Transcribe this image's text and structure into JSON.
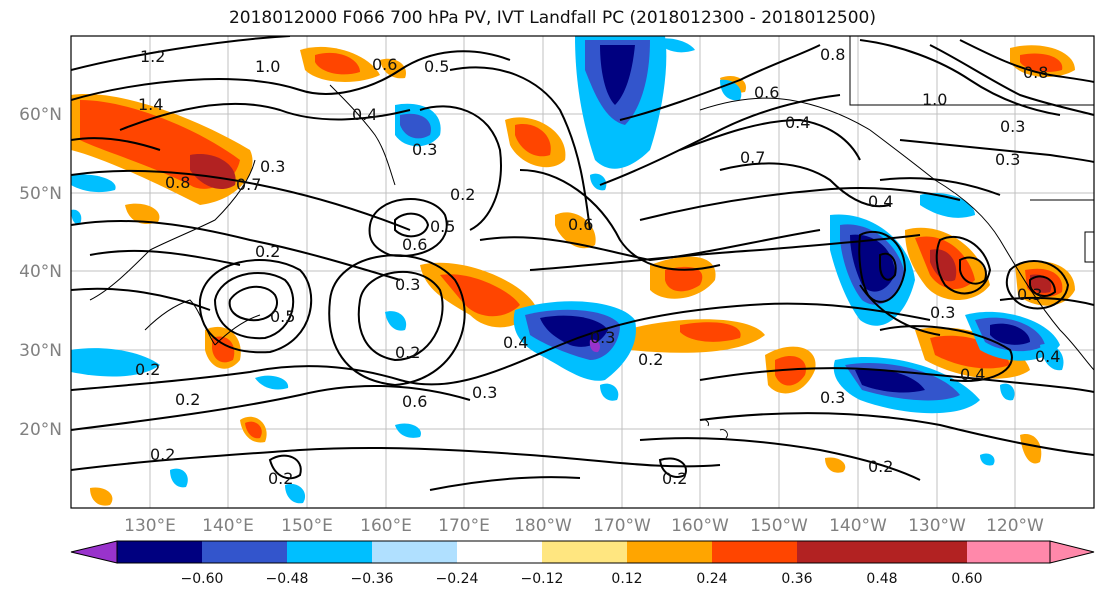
{
  "title": "2018012000 F066 700 hPa PV, IVT Landfall PC (2018012300 - 2018012500)",
  "lon_labels": [
    "130°E",
    "140°E",
    "150°E",
    "160°E",
    "170°E",
    "180°W",
    "170°W",
    "160°W",
    "150°W",
    "140°W",
    "130°W",
    "120°W"
  ],
  "lat_labels": [
    "60°N",
    "50°N",
    "40°N",
    "30°N",
    "20°N"
  ],
  "colorbar": {
    "ticks": [
      "−0.60",
      "−0.48",
      "−0.36",
      "−0.24",
      "−0.12",
      "0.12",
      "0.24",
      "0.36",
      "0.48",
      "0.60"
    ],
    "colors": [
      "#9933cc",
      "#000080",
      "#3355cc",
      "#00bfff",
      "#b0e0ff",
      "#ffffff",
      "#ffe680",
      "#ffa500",
      "#ff4500",
      "#b22222",
      "#ff88aa"
    ]
  },
  "contour_labels": [
    "1.2",
    "1.0",
    "1.4",
    "0.6",
    "0.5",
    "0.4",
    "0.3",
    "0.8",
    "0.7",
    "0.2",
    "0.6",
    "0.5",
    "0.3",
    "0.2",
    "0.6",
    "0.3",
    "0.2",
    "0.2",
    "0.2",
    "0.4",
    "0.3",
    "0.2",
    "0.3",
    "0.2",
    "0.4",
    "0.3",
    "0.3",
    "0.4",
    "0.3",
    "0.4",
    "0.6",
    "0.8",
    "1.0",
    "0.8",
    "0.3",
    "0.5",
    "0.2",
    "0.2",
    "0.2",
    "0.3",
    "0.7",
    "0.4",
    "0.6"
  ]
}
